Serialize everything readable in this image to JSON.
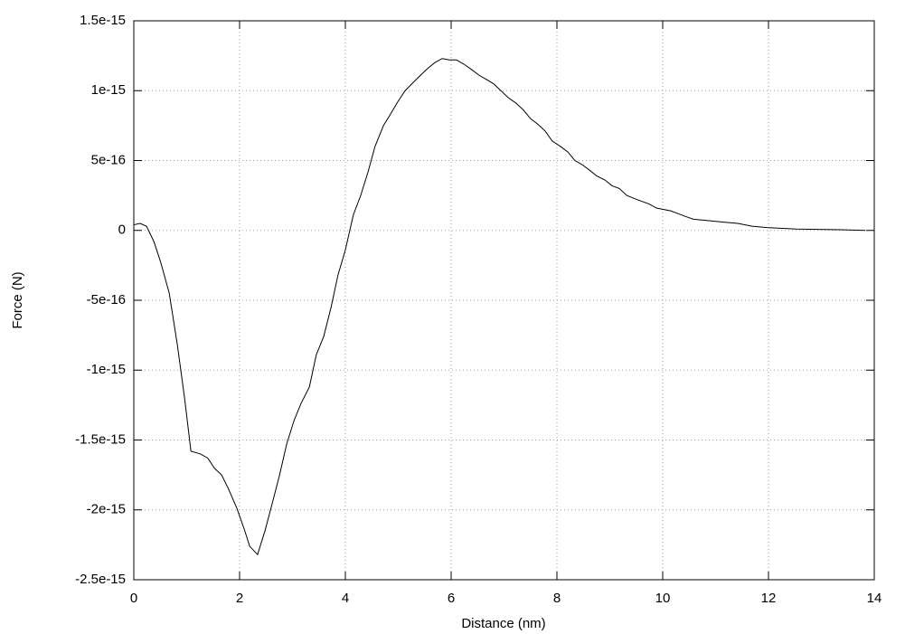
{
  "chart_data": {
    "type": "line",
    "xlabel": "Distance (nm)",
    "ylabel": "Force (N)",
    "xlim": [
      0,
      14
    ],
    "xticks": [
      0,
      2,
      4,
      6,
      8,
      10,
      12,
      14
    ],
    "ylim": [
      -2.5e-15,
      1.5e-15
    ],
    "yticks": [
      -2.5e-15,
      -2e-15,
      -1.5e-15,
      -1e-15,
      -5e-16,
      0,
      5e-16,
      1e-15,
      1.5e-15
    ],
    "grid": true,
    "series": [
      {
        "color": "#000000",
        "x": [
          0,
          0.12,
          0.24,
          0.38,
          0.51,
          0.67,
          0.82,
          0.96,
          1.08,
          1.26,
          1.4,
          1.52,
          1.66,
          1.79,
          1.95,
          2.09,
          2.19,
          2.34,
          2.48,
          2.62,
          2.75,
          2.89,
          3.03,
          3.16,
          3.32,
          3.45,
          3.59,
          3.73,
          3.86,
          4.0,
          4.15,
          4.29,
          4.43,
          4.56,
          4.72,
          4.85,
          4.99,
          5.13,
          5.26,
          5.42,
          5.56,
          5.69,
          5.83,
          5.97,
          6.1,
          6.24,
          6.39,
          6.53,
          6.67,
          6.8,
          6.94,
          7.08,
          7.23,
          7.37,
          7.5,
          7.64,
          7.78,
          7.91,
          8.07,
          8.21,
          8.34,
          8.48,
          8.62,
          8.75,
          8.91,
          9.04,
          9.18,
          9.32,
          9.45,
          9.59,
          9.74,
          9.88,
          10.15,
          10.29,
          10.43,
          10.58,
          10.85,
          11.13,
          11.42,
          11.69,
          11.97,
          12.53,
          13.37,
          13.83
        ],
        "values": [
          4e-17,
          5e-17,
          3e-17,
          -8e-17,
          -2.3e-16,
          -4.5e-16,
          -8.1e-16,
          -1.2e-15,
          -1.58e-15,
          -1.6e-15,
          -1.63e-15,
          -1.7e-15,
          -1.75e-15,
          -1.85e-15,
          -1.99e-15,
          -2.14e-15,
          -2.26e-15,
          -2.32e-15,
          -2.15e-15,
          -1.95e-15,
          -1.76e-15,
          -1.53e-15,
          -1.36e-15,
          -1.24e-15,
          -1.12e-15,
          -8.9e-16,
          -7.6e-16,
          -5.5e-16,
          -3.2e-16,
          -1.4e-16,
          1.1e-16,
          2.5e-16,
          4.2e-16,
          6e-16,
          7.5e-16,
          8.3e-16,
          9.2e-16,
          1e-15,
          1.05e-15,
          1.11e-15,
          1.16e-15,
          1.2e-15,
          1.23e-15,
          1.22e-15,
          1.22e-15,
          1.19e-15,
          1.15e-15,
          1.11e-15,
          1.08e-15,
          1.05e-15,
          1e-15,
          9.5e-16,
          9.1e-16,
          8.6e-16,
          8e-16,
          7.6e-16,
          7.1e-16,
          6.4e-16,
          6e-16,
          5.6e-16,
          5e-16,
          4.7e-16,
          4.3e-16,
          3.9e-16,
          3.6e-16,
          3.2e-16,
          3e-16,
          2.5e-16,
          2.3e-16,
          2.1e-16,
          1.9e-16,
          1.6e-16,
          1.4e-16,
          1.2e-16,
          1e-16,
          8e-17,
          7e-17,
          6e-17,
          5e-17,
          3e-17,
          2e-17,
          1e-17,
          5e-18,
          0
        ]
      }
    ]
  }
}
